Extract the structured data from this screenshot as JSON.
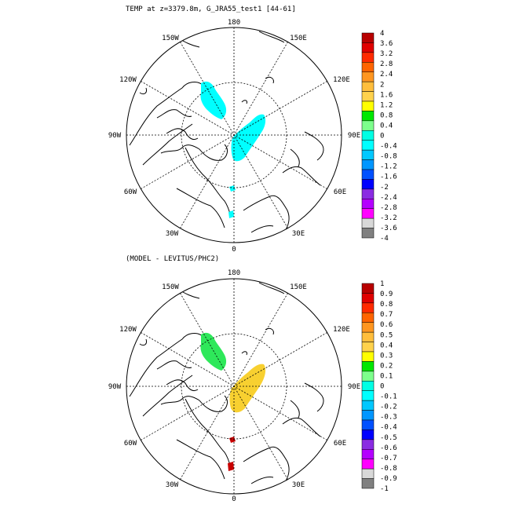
{
  "panels": [
    {
      "title": "TEMP at z=3379.8m, G_JRA55_test1 [44-61]",
      "longitude_labels": [
        "180",
        "150E",
        "120E",
        "90E",
        "60E",
        "30E",
        "0",
        "30W",
        "60W",
        "90W",
        "120W",
        "150W"
      ],
      "colorbar": {
        "labels": [
          "4",
          "3.6",
          "3.2",
          "2.8",
          "2.4",
          "2",
          "1.6",
          "1.2",
          "0.8",
          "0.4",
          "0",
          "-0.4",
          "-0.8",
          "-1.2",
          "-1.6",
          "-2",
          "-2.4",
          "-2.8",
          "-3.2",
          "-3.6",
          "-4"
        ],
        "colors": [
          "#b80000",
          "#e00000",
          "#ff2a00",
          "#ff6400",
          "#ff9620",
          "#ffbe3c",
          "#ffd24c",
          "#ffff00",
          "#00e800",
          "#7dff8c",
          "#00ffe4",
          "#00ffff",
          "#00c8ff",
          "#0096ff",
          "#0050ff",
          "#0000ff",
          "#8a2be2",
          "#b400ff",
          "#ff00ff",
          "#d8d8d8",
          "#808080"
        ]
      },
      "features": [
        {
          "name": "anomaly-patch-alpha-ridge",
          "color": "#00ffff"
        },
        {
          "name": "anomaly-patch-gakkel-ridge",
          "color": "#00ffff"
        },
        {
          "name": "anomaly-patch-fram-strait",
          "color": "#00ffff"
        },
        {
          "name": "anomaly-patch-greenland-sea",
          "color": "#00ffff"
        }
      ]
    },
    {
      "title": "(MODEL - LEVITUS/PHC2)",
      "longitude_labels": [
        "180",
        "150E",
        "120E",
        "90E",
        "60E",
        "30E",
        "0",
        "30W",
        "60W",
        "90W",
        "120W",
        "150W"
      ],
      "colorbar": {
        "labels": [
          "1",
          "0.9",
          "0.8",
          "0.7",
          "0.6",
          "0.5",
          "0.4",
          "0.3",
          "0.2",
          "0.1",
          "0",
          "-0.1",
          "-0.2",
          "-0.3",
          "-0.4",
          "-0.5",
          "-0.6",
          "-0.7",
          "-0.8",
          "-0.9",
          "-1"
        ],
        "colors": [
          "#b80000",
          "#e00000",
          "#ff2a00",
          "#ff6400",
          "#ff9620",
          "#ffbe3c",
          "#ffd24c",
          "#ffff00",
          "#00e800",
          "#7dff8c",
          "#00ffe4",
          "#00ffff",
          "#00c8ff",
          "#0096ff",
          "#0050ff",
          "#0000ff",
          "#8a2be2",
          "#b400ff",
          "#ff00ff",
          "#d8d8d8",
          "#808080"
        ]
      },
      "features": [
        {
          "name": "anomaly-patch-alpha-ridge",
          "color": "#2ee85a"
        },
        {
          "name": "anomaly-patch-gakkel-ridge",
          "color": "#f8d030"
        },
        {
          "name": "anomaly-patch-fram-strait",
          "color": "#c80000"
        },
        {
          "name": "anomaly-patch-greenland-sea",
          "color": "#c80000"
        }
      ]
    }
  ]
}
